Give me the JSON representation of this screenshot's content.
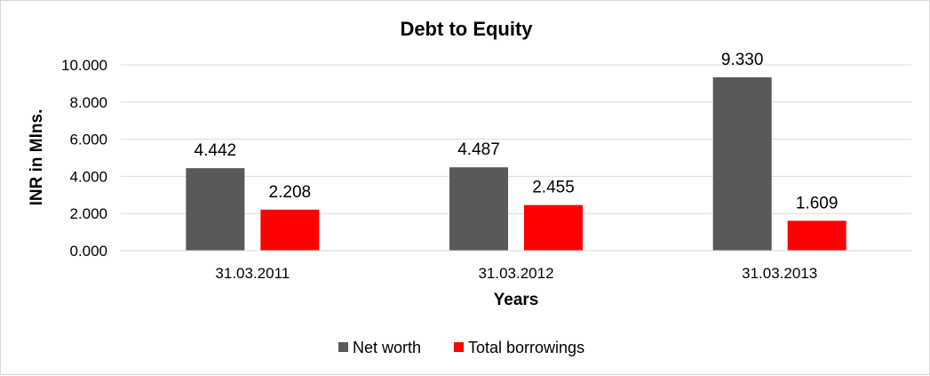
{
  "chart_data": {
    "type": "bar",
    "title": "Debt to Equity",
    "xlabel": "Years",
    "ylabel": "INR in Mlns.",
    "categories": [
      "31.03.2011",
      "31.03.2012",
      "31.03.2013"
    ],
    "series": [
      {
        "name": "Net worth",
        "values": [
          4.442,
          4.487,
          9.33
        ],
        "labels": [
          "4.442",
          "4.487",
          "9.330"
        ],
        "color": "#595959"
      },
      {
        "name": "Total borrowings",
        "values": [
          2.208,
          2.455,
          1.609
        ],
        "labels": [
          "2.208",
          "2.455",
          "1.609"
        ],
        "color": "#ff0000"
      }
    ],
    "ylim": [
      0,
      10
    ],
    "yticks": [
      "0.000",
      "2.000",
      "4.000",
      "6.000",
      "8.000",
      "10.000"
    ],
    "grid": true,
    "legend_position": "bottom"
  }
}
